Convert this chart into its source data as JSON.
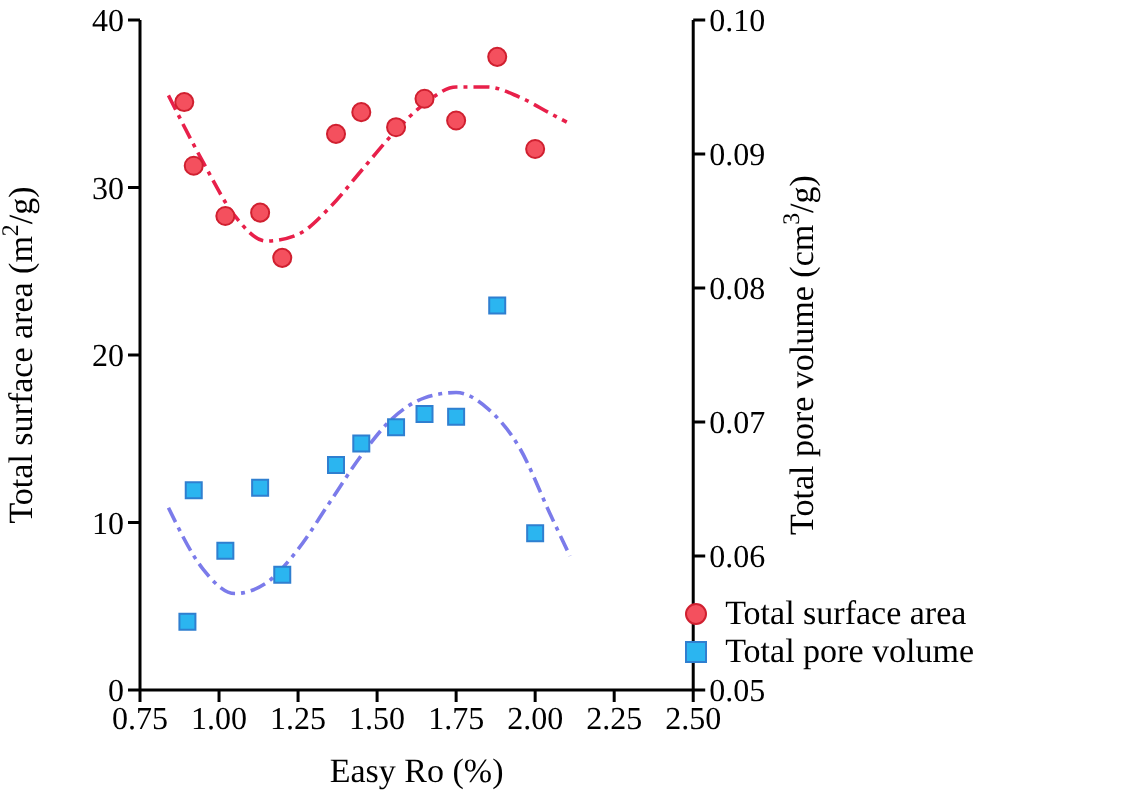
{
  "chart_data": {
    "type": "scatter",
    "xlabel": "Easy Ro (%)",
    "ylabel": "Total surface area (m$^{2}$/g)",
    "y2label": "Total pore volume (cm$^{3}$/g)",
    "xlim": [
      0.75,
      2.5
    ],
    "xticks": [
      {
        "value": 0.75,
        "label": "0.75"
      },
      {
        "value": 1,
        "label": "1.00"
      },
      {
        "value": 1.25,
        "label": "1.25"
      },
      {
        "value": 1.5,
        "label": "1.50"
      },
      {
        "value": 1.75,
        "label": "1.75"
      },
      {
        "value": 2,
        "label": "2.00"
      },
      {
        "value": 2.25,
        "label": "2.25"
      },
      {
        "value": 2.5,
        "label": "2.50"
      }
    ],
    "ylim": [
      0,
      40
    ],
    "yticks": [
      0,
      10,
      20,
      30,
      40
    ],
    "y2lim": [
      0.05,
      0.1
    ],
    "y2ticks": [
      0.05,
      0.06,
      0.07,
      0.08,
      0.09,
      {
        "value": 0.1,
        "label": "0.10"
      }
    ],
    "grid": false,
    "legend": "bottom right",
    "series": [
      {
        "name": "Total surface area",
        "marker": "circle",
        "color": "#f4505e",
        "x": [
          0.89,
          0.92,
          1.02,
          1.13,
          1.2,
          1.37,
          1.45,
          1.56,
          1.65,
          1.75,
          1.88,
          2.0
        ],
        "values": [
          35.1,
          31.3,
          28.3,
          28.5,
          25.8,
          33.2,
          34.5,
          33.6,
          35.3,
          34.0,
          37.8,
          32.3
        ]
      },
      {
        "name": "Total pore volume",
        "marker": "square",
        "color": "#2bb5f0",
        "axis": "y2",
        "x": [
          0.9,
          0.92,
          1.02,
          1.13,
          1.2,
          1.37,
          1.45,
          1.56,
          1.65,
          1.75,
          1.88,
          2.0
        ],
        "values": [
          0.0551,
          0.0649,
          0.0604,
          0.0651,
          0.0586,
          0.0668,
          0.0684,
          0.0696,
          0.0706,
          0.0704,
          0.0787,
          0.0617
        ]
      },
      {
        "type": "line",
        "marker": "none",
        "line_style": "dashed",
        "color": "#e8204a",
        "x": [
          0.84,
          0.95,
          1.05,
          1.15,
          1.25,
          1.35,
          1.45,
          1.55,
          1.65,
          1.75,
          1.85,
          1.95,
          2.05,
          2.1
        ],
        "values": [
          35.5,
          31.5,
          28.3,
          26.8,
          27.2,
          28.8,
          31.0,
          33.2,
          35.0,
          36.0,
          36.0,
          35.4,
          34.4,
          33.9
        ]
      },
      {
        "type": "line",
        "marker": "none",
        "line_style": "dashed",
        "color": "#7b7bea",
        "axis": "y2",
        "x": [
          0.84,
          0.95,
          1.05,
          1.15,
          1.25,
          1.35,
          1.45,
          1.55,
          1.65,
          1.75,
          1.85,
          1.95,
          2.05,
          2.11
        ],
        "values": [
          0.0636,
          0.059,
          0.0572,
          0.058,
          0.0605,
          0.064,
          0.0675,
          0.0703,
          0.0718,
          0.0722,
          0.071,
          0.0681,
          0.063,
          0.06
        ]
      }
    ]
  }
}
